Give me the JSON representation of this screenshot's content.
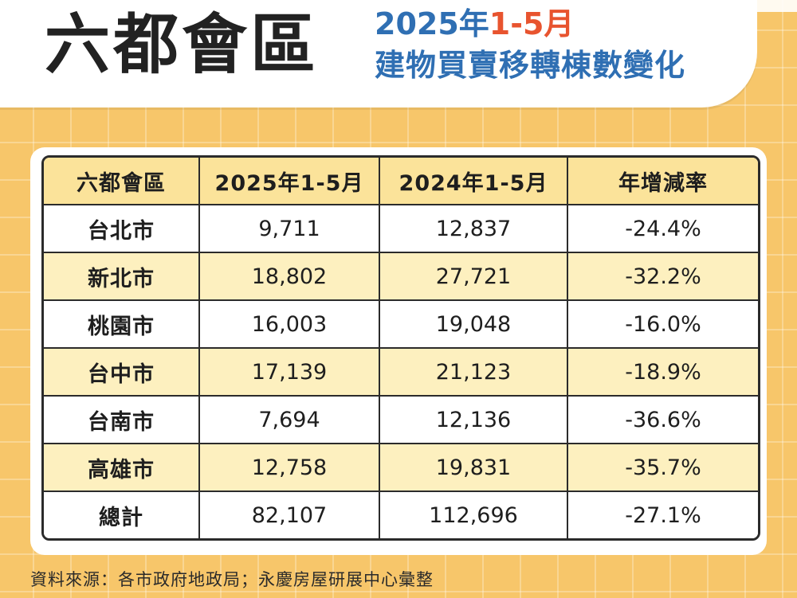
{
  "header": {
    "title": "六都會區",
    "subtitle_year": "2025年",
    "subtitle_period": "1-5月",
    "subtitle_line2": "建物買賣移轉棟數變化"
  },
  "table": {
    "columns": [
      "六都會區",
      "2025年1-5月",
      "2024年1-5月",
      "年增減率"
    ],
    "rows": [
      {
        "city": "台北市",
        "y2025": "9,711",
        "y2024": "12,837",
        "change": "-24.4%"
      },
      {
        "city": "新北市",
        "y2025": "18,802",
        "y2024": "27,721",
        "change": "-32.2%"
      },
      {
        "city": "桃園市",
        "y2025": "16,003",
        "y2024": "19,048",
        "change": "-16.0%"
      },
      {
        "city": "台中市",
        "y2025": "17,139",
        "y2024": "21,123",
        "change": "-18.9%"
      },
      {
        "city": "台南市",
        "y2025": "7,694",
        "y2024": "12,136",
        "change": "-36.6%"
      },
      {
        "city": "高雄市",
        "y2025": "12,758",
        "y2024": "19,831",
        "change": "-35.7%"
      },
      {
        "city": "總計",
        "y2025": "82,107",
        "y2024": "112,696",
        "change": "-27.1%"
      }
    ]
  },
  "footer": {
    "source": "資料來源：各市政府地政局；永慶房屋研展中心彙整"
  },
  "colors": {
    "background": "#f7c66a",
    "header_row": "#fbe39a",
    "alt_row": "#fdf0bf",
    "subtitle_blue": "#2f6fb3",
    "subtitle_red": "#e8542f"
  }
}
